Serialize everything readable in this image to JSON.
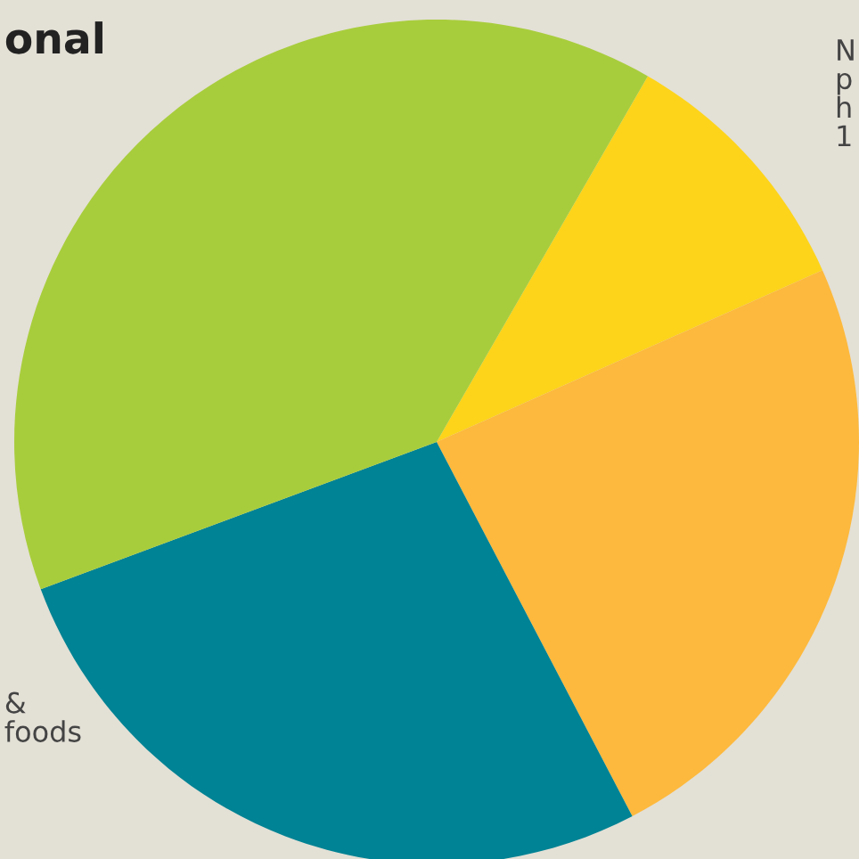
{
  "chart_data": {
    "type": "pie",
    "title": "onal",
    "categories": [
      null,
      null,
      null,
      null
    ],
    "values": [
      10,
      24,
      27,
      39
    ],
    "colors": [
      "#fdd41a",
      "#fdb93d",
      "#008394",
      "#a8cd3c"
    ],
    "annotations": [
      "N\np\nh\n1",
      "&\nfoods"
    ]
  }
}
